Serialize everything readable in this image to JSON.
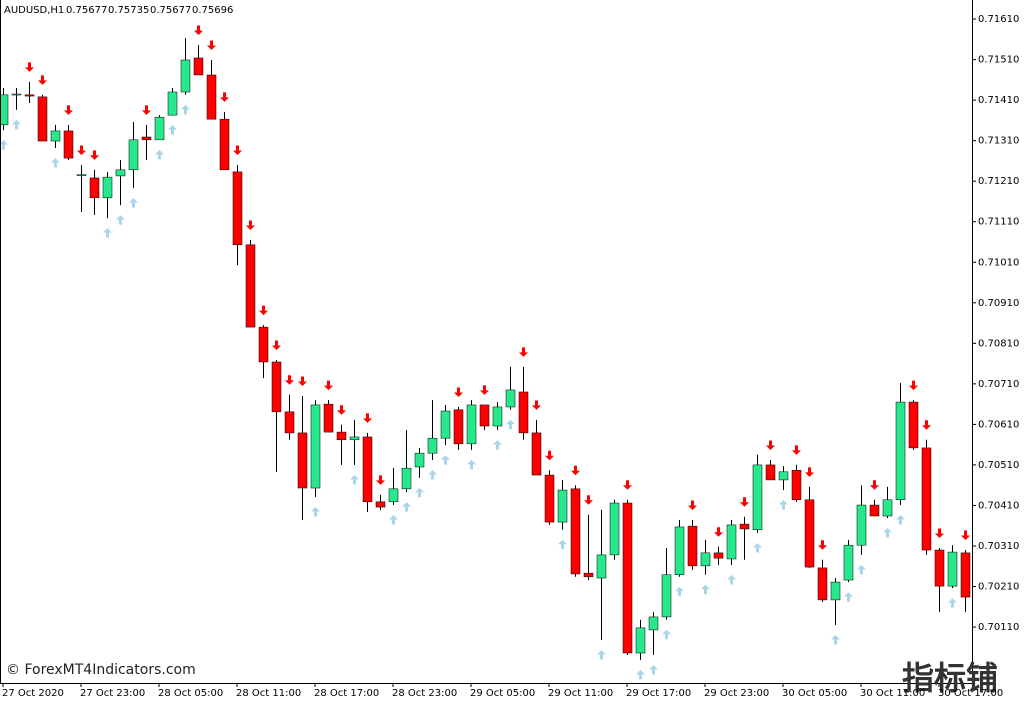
{
  "chart_data": {
    "type": "candlestick",
    "title": "AUDUSD,H1",
    "header_ohlc": [
      0.75677,
      0.75735,
      0.75677,
      0.75696
    ],
    "watermark": "© ForexMT4Indicators.com",
    "logo": "指标铺",
    "up_color": "#27e88c",
    "down_color": "#ff0000",
    "wick_color": "#000000",
    "signal_up_color": "#a9d6e8",
    "signal_down_color": "#ff0000",
    "grid": false,
    "ylim": [
      0.69972,
      0.71657
    ],
    "yticks": [
      {
        "value": 0.7161,
        "label": "0.71610"
      },
      {
        "value": 0.7151,
        "label": "0.71510"
      },
      {
        "value": 0.7141,
        "label": "0.71410"
      },
      {
        "value": 0.7131,
        "label": "0.71310"
      },
      {
        "value": 0.7121,
        "label": "0.71210"
      },
      {
        "value": 0.7111,
        "label": "0.71110"
      },
      {
        "value": 0.7101,
        "label": "0.71010"
      },
      {
        "value": 0.7091,
        "label": "0.70910"
      },
      {
        "value": 0.7081,
        "label": "0.70810"
      },
      {
        "value": 0.7071,
        "label": "0.70710"
      },
      {
        "value": 0.7061,
        "label": "0.70610"
      },
      {
        "value": 0.7051,
        "label": "0.70510"
      },
      {
        "value": 0.7041,
        "label": "0.70410"
      },
      {
        "value": 0.7031,
        "label": "0.70310"
      },
      {
        "value": 0.7021,
        "label": "0.70210"
      },
      {
        "value": 0.7011,
        "label": "0.70110"
      }
    ],
    "categories": [
      "27 Oct 2020",
      null,
      null,
      null,
      null,
      null,
      "27 Oct 23:00",
      null,
      null,
      null,
      null,
      null,
      "28 Oct 05:00",
      null,
      null,
      null,
      null,
      null,
      "28 Oct 11:00",
      null,
      null,
      null,
      null,
      null,
      "28 Oct 17:00",
      null,
      null,
      null,
      null,
      null,
      "28 Oct 23:00",
      null,
      null,
      null,
      null,
      null,
      "29 Oct 05:00",
      null,
      null,
      null,
      null,
      null,
      "29 Oct 11:00",
      null,
      null,
      null,
      null,
      null,
      "29 Oct 17:00",
      null,
      null,
      null,
      null,
      null,
      "29 Oct 23:00",
      null,
      null,
      null,
      null,
      null,
      "30 Oct 05:00",
      null,
      null,
      null,
      null,
      null,
      "30 Oct 11:00",
      null,
      null,
      null,
      null,
      null,
      "30 Oct 17:00",
      null,
      null
    ],
    "open": [
      0.71349,
      0.71423,
      0.71423,
      0.71418,
      0.71309,
      0.71334,
      0.71225,
      0.71218,
      0.71169,
      0.71223,
      0.71238,
      0.71319,
      0.71312,
      0.71373,
      0.7143,
      0.71514,
      0.71472,
      0.71363,
      0.71233,
      0.71053,
      0.7085,
      0.70764,
      0.70641,
      0.70589,
      0.70453,
      0.7066,
      0.70591,
      0.70572,
      0.70579,
      0.70419,
      0.70419,
      0.70451,
      0.70505,
      0.70539,
      0.70576,
      0.70646,
      0.70562,
      0.70658,
      0.70606,
      0.70653,
      0.7069,
      0.70589,
      0.70485,
      0.70369,
      0.70451,
      0.70243,
      0.70231,
      0.70288,
      0.70416,
      0.70046,
      0.70103,
      0.70135,
      0.70239,
      0.70359,
      0.70261,
      0.70293,
      0.70278,
      0.70364,
      0.7035,
      0.7051,
      0.70473,
      0.70497,
      0.70424,
      0.70256,
      0.70177,
      0.70226,
      0.70312,
      0.70411,
      0.70384,
      0.70424,
      0.70665,
      0.70552,
      0.703,
      0.70211,
      0.70293
    ],
    "high": [
      0.7144,
      0.7144,
      0.71455,
      0.71423,
      0.71349,
      0.71349,
      0.7125,
      0.71238,
      0.71233,
      0.71262,
      0.71356,
      0.71349,
      0.71373,
      0.7144,
      0.71563,
      0.71546,
      0.71509,
      0.71381,
      0.7125,
      0.71065,
      0.70855,
      0.70769,
      0.70683,
      0.7068,
      0.7067,
      0.7067,
      0.70609,
      0.70621,
      0.70589,
      0.70436,
      0.70502,
      0.70596,
      0.70552,
      0.7067,
      0.70658,
      0.70653,
      0.7067,
      0.70658,
      0.70665,
      0.70752,
      0.70752,
      0.70621,
      0.70497,
      0.70473,
      0.7046,
      0.70387,
      0.70399,
      0.70424,
      0.70424,
      0.70128,
      0.70147,
      0.70305,
      0.70374,
      0.70374,
      0.70325,
      0.70308,
      0.70374,
      0.70382,
      0.70535,
      0.70522,
      0.70507,
      0.7051,
      0.70456,
      0.70276,
      0.70231,
      0.70325,
      0.7046,
      0.70424,
      0.70456,
      0.70712,
      0.7067,
      0.70572,
      0.70305,
      0.70312,
      0.703
    ],
    "low": [
      0.71336,
      0.71386,
      0.71403,
      0.71309,
      0.71292,
      0.71262,
      0.71134,
      0.71127,
      0.71119,
      0.71151,
      0.71193,
      0.71262,
      0.71312,
      0.71373,
      0.71423,
      0.71472,
      0.71363,
      0.71238,
      0.71003,
      0.7085,
      0.70724,
      0.70493,
      0.70572,
      0.70374,
      0.70431,
      0.70591,
      0.7051,
      0.7051,
      0.70394,
      0.70399,
      0.70411,
      0.70443,
      0.70478,
      0.70522,
      0.70559,
      0.70547,
      0.70547,
      0.70596,
      0.70596,
      0.70646,
      0.70572,
      0.70485,
      0.70362,
      0.7035,
      0.70234,
      0.70226,
      0.70078,
      0.70276,
      0.70041,
      0.70029,
      0.70041,
      0.70128,
      0.70234,
      0.70251,
      0.70239,
      0.70263,
      0.70263,
      0.70276,
      0.70342,
      0.70473,
      0.70448,
      0.70419,
      0.70256,
      0.70172,
      0.70115,
      0.70221,
      0.70288,
      0.70384,
      0.70379,
      0.70411,
      0.70547,
      0.70288,
      0.70147,
      0.70206,
      0.70147
    ],
    "close": [
      0.71423,
      0.71425,
      0.7142,
      0.71309,
      0.71334,
      0.71267,
      0.71226,
      0.71169,
      0.7122,
      0.71238,
      0.71312,
      0.71312,
      0.71368,
      0.7143,
      0.71509,
      0.71472,
      0.71363,
      0.71238,
      0.71053,
      0.7085,
      0.70764,
      0.70641,
      0.70589,
      0.70453,
      0.70658,
      0.70591,
      0.70572,
      0.70579,
      0.70419,
      0.70406,
      0.70451,
      0.70502,
      0.70539,
      0.70576,
      0.70643,
      0.70562,
      0.70658,
      0.70606,
      0.70653,
      0.70695,
      0.70589,
      0.70485,
      0.70369,
      0.70448,
      0.70241,
      0.70234,
      0.70288,
      0.70416,
      0.70046,
      0.70108,
      0.70135,
      0.70239,
      0.70357,
      0.70261,
      0.70293,
      0.7028,
      0.70362,
      0.70352,
      0.7051,
      0.70473,
      0.70493,
      0.70424,
      0.70258,
      0.70177,
      0.70221,
      0.70312,
      0.70411,
      0.70384,
      0.70424,
      0.70665,
      0.70552,
      0.703,
      0.70211,
      0.70295,
      0.70184
    ],
    "signals": [
      "up",
      "up",
      "down",
      "down",
      "up",
      "down",
      "down",
      "down",
      "up",
      "up",
      "up",
      "down",
      "up",
      "up",
      "up",
      "down",
      "down",
      "down",
      "down",
      "down",
      "down",
      "down",
      "down",
      "down",
      "up",
      "down",
      "down",
      "up",
      "down",
      "down",
      "up",
      "up",
      "up",
      "up",
      "up",
      "down",
      "up",
      "down",
      "up",
      "up",
      "down",
      "down",
      "down",
      "up",
      "down",
      "down",
      "up",
      null,
      "down",
      "up",
      "up",
      "up",
      "up",
      "down",
      "up",
      "down",
      "up",
      "down",
      "up",
      "down",
      "up",
      "down",
      "down",
      "down",
      "up",
      "up",
      "up",
      "down",
      "up",
      "up",
      "down",
      "down",
      "down",
      "up",
      "down"
    ]
  }
}
